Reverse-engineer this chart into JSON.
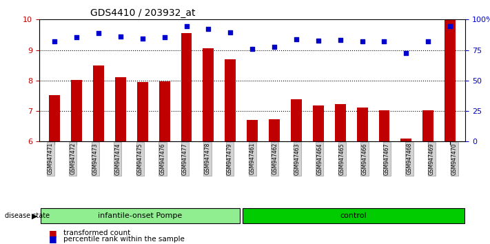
{
  "title": "GDS4410 / 203932_at",
  "samples": [
    "GSM947471",
    "GSM947472",
    "GSM947473",
    "GSM947474",
    "GSM947475",
    "GSM947476",
    "GSM947477",
    "GSM947478",
    "GSM947479",
    "GSM947461",
    "GSM947462",
    "GSM947463",
    "GSM947464",
    "GSM947465",
    "GSM947466",
    "GSM947467",
    "GSM947468",
    "GSM947469",
    "GSM947470"
  ],
  "bar_values": [
    7.52,
    8.02,
    8.5,
    8.12,
    7.95,
    7.98,
    9.55,
    9.05,
    8.7,
    6.7,
    6.73,
    7.38,
    7.18,
    7.22,
    7.12,
    7.02,
    6.1,
    7.02,
    9.98
  ],
  "dot_values": [
    9.28,
    9.42,
    9.55,
    9.45,
    9.38,
    9.42,
    9.78,
    9.68,
    9.58,
    9.03,
    9.1,
    9.35,
    9.3,
    9.32,
    9.28,
    9.28,
    8.9,
    9.28,
    9.78
  ],
  "bar_color": "#c00000",
  "dot_color": "#0000cc",
  "ylim_left": [
    6,
    10
  ],
  "yticks_left": [
    6,
    7,
    8,
    9,
    10
  ],
  "yticks_right": [
    0,
    25,
    50,
    75,
    100
  ],
  "ylabel_left_color": "#c00000",
  "ylabel_right_color": "#0000cc",
  "group1_label": "infantile-onset Pompe",
  "group2_label": "control",
  "group1_color": "#90ee90",
  "group2_color": "#00cc00",
  "group1_count": 9,
  "group2_count": 10,
  "disease_state_label": "disease state",
  "legend_bar_label": "transformed count",
  "legend_dot_label": "percentile rank within the sample",
  "background_plot": "#ffffff",
  "background_xticklabels": "#d3d3d3",
  "grid_color": "#000000",
  "base_value": 6
}
